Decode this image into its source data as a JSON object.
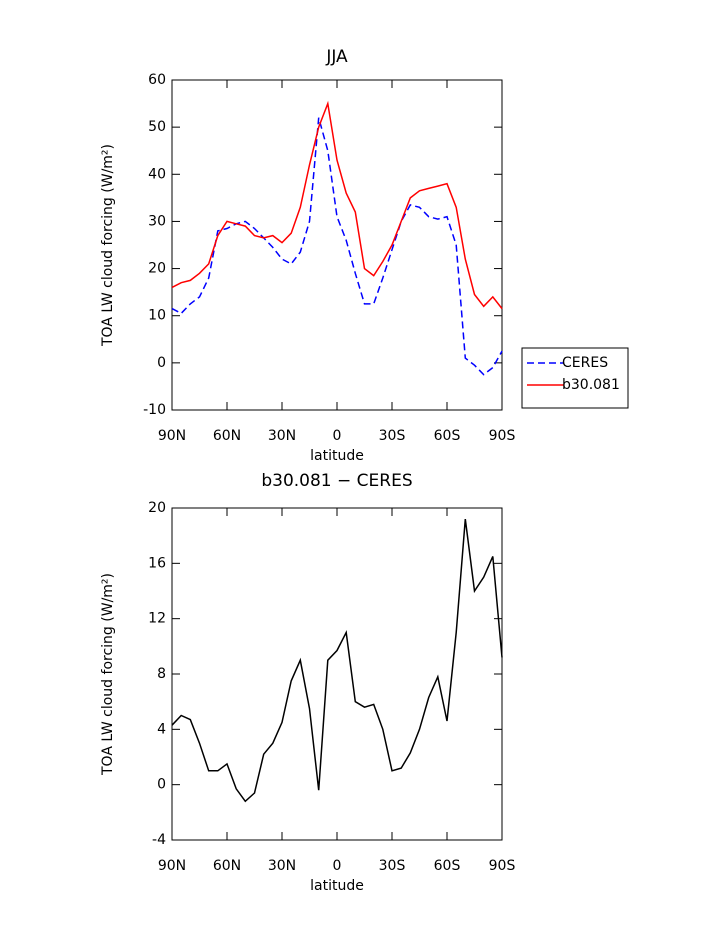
{
  "chart_data": [
    {
      "type": "line",
      "title": "JJA",
      "xlabel": "latitude",
      "ylabel": "TOA LW cloud forcing (W/m²)",
      "x": [
        90,
        85,
        80,
        75,
        70,
        65,
        60,
        55,
        50,
        45,
        40,
        35,
        30,
        25,
        20,
        15,
        10,
        5,
        0,
        -5,
        -10,
        -15,
        -20,
        -25,
        -30,
        -35,
        -40,
        -45,
        -50,
        -55,
        -60,
        -65,
        -70,
        -75,
        -80,
        -85,
        -90
      ],
      "xlim": [
        90,
        -90
      ],
      "xticks": [
        {
          "value": 90,
          "label": "90N"
        },
        {
          "value": 60,
          "label": "60N"
        },
        {
          "value": 30,
          "label": "30N"
        },
        0,
        {
          "value": -30,
          "label": "30S"
        },
        {
          "value": -60,
          "label": "60S"
        },
        {
          "value": -90,
          "label": "90S"
        }
      ],
      "ylim": [
        -10,
        60
      ],
      "yticks": [
        -10,
        0,
        10,
        20,
        30,
        40,
        50,
        60
      ],
      "legend": "right",
      "series": [
        {
          "name": "CERES",
          "color": "#0000ff",
          "linestyle": "dashed",
          "values": [
            11.5,
            10.5,
            12.5,
            14,
            18,
            28,
            28.5,
            29.5,
            30,
            28.5,
            26.5,
            24.5,
            22,
            21,
            23.5,
            30,
            52,
            45,
            31,
            26,
            19,
            12.5,
            12.5,
            18,
            24,
            30,
            33.5,
            33,
            31,
            30.5,
            31,
            25,
            1,
            -0.5,
            -2.5,
            -1,
            2.5
          ]
        },
        {
          "name": "b30.081",
          "color": "#ff0000",
          "linestyle": "solid",
          "values": [
            16,
            17,
            17.5,
            19,
            21,
            27,
            30,
            29.5,
            29,
            27,
            26.5,
            27,
            25.5,
            27.5,
            33,
            42,
            50,
            55,
            43,
            36,
            32,
            20,
            18.5,
            21.5,
            25,
            30,
            35,
            36.5,
            37,
            37.5,
            38,
            33,
            22,
            14.5,
            12,
            14,
            11.5
          ]
        }
      ]
    },
    {
      "type": "line",
      "title": "b30.081 − CERES",
      "xlabel": "latitude",
      "ylabel": "TOA LW cloud forcing (W/m²)",
      "x": [
        90,
        85,
        80,
        75,
        70,
        65,
        60,
        55,
        50,
        45,
        40,
        35,
        30,
        25,
        20,
        15,
        10,
        5,
        0,
        -5,
        -10,
        -15,
        -20,
        -25,
        -30,
        -35,
        -40,
        -45,
        -50,
        -55,
        -60,
        -65,
        -70,
        -75,
        -80,
        -85,
        -90
      ],
      "xlim": [
        90,
        -90
      ],
      "xticks": [
        {
          "value": 90,
          "label": "90N"
        },
        {
          "value": 60,
          "label": "60N"
        },
        {
          "value": 30,
          "label": "30N"
        },
        0,
        {
          "value": -30,
          "label": "30S"
        },
        {
          "value": -60,
          "label": "60S"
        },
        {
          "value": -90,
          "label": "90S"
        }
      ],
      "ylim": [
        -4,
        20
      ],
      "yticks": [
        -4,
        0,
        4,
        8,
        12,
        16,
        20
      ],
      "series": [
        {
          "color": "#000000",
          "linestyle": "solid",
          "values": [
            4.3,
            5.0,
            4.7,
            3.0,
            1.0,
            1.0,
            1.5,
            -0.3,
            -1.2,
            -0.6,
            2.2,
            3.0,
            4.5,
            7.5,
            9.0,
            5.5,
            -0.4,
            9.0,
            9.7,
            11.0,
            6.0,
            5.6,
            5.8,
            4.0,
            1.0,
            1.2,
            2.3,
            4.0,
            6.3,
            7.8,
            4.6,
            11.0,
            19.2,
            14,
            15,
            16.5,
            9.2
          ]
        }
      ]
    }
  ]
}
